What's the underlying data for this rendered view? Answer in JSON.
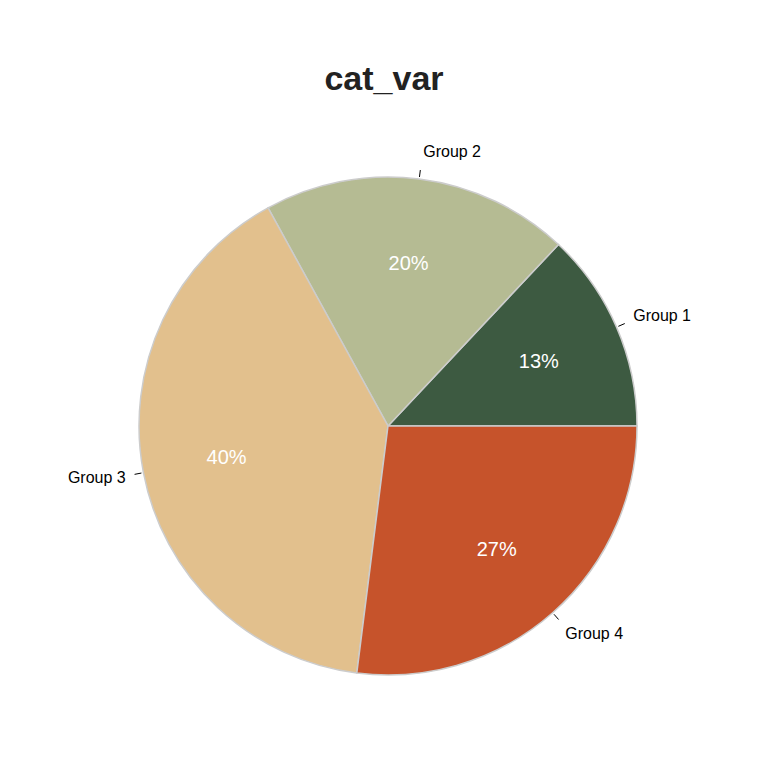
{
  "chart_data": {
    "type": "pie",
    "title": "cat_var",
    "categories": [
      "Group 1",
      "Group 2",
      "Group 3",
      "Group 4"
    ],
    "values": [
      13,
      20,
      40,
      27
    ],
    "value_labels": [
      "13%",
      "20%",
      "40%",
      "27%"
    ],
    "colors": [
      "#3d5a41",
      "#b5bb93",
      "#e2c08d",
      "#c6532b"
    ],
    "data_labels": true
  }
}
